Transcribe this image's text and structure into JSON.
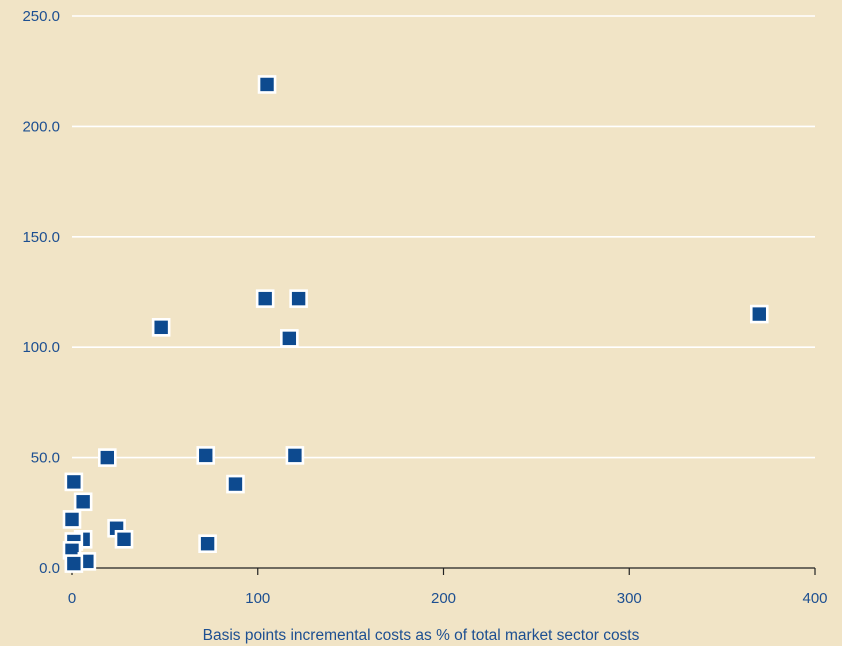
{
  "chart_data": {
    "type": "scatter",
    "title": "",
    "xlabel": "Basis points incremental costs as % of total market sector costs",
    "ylabel": "",
    "xlim": [
      0,
      400
    ],
    "ylim": [
      0,
      250
    ],
    "x_ticks": [
      "0",
      "100",
      "200",
      "300",
      "400"
    ],
    "y_ticks": [
      "0.0",
      "50.0",
      "100.0",
      "150.0",
      "200.0",
      "250.0"
    ],
    "grid": "horizontal",
    "colors": {
      "background": "#f1e4c6",
      "marker": "#0d4a8f",
      "marker_edge": "#ffffff",
      "grid": "#ffffff",
      "text": "#1d4f91"
    },
    "points": [
      {
        "x": 105,
        "y": 219
      },
      {
        "x": 104,
        "y": 122
      },
      {
        "x": 122,
        "y": 122
      },
      {
        "x": 370,
        "y": 115
      },
      {
        "x": 48,
        "y": 109
      },
      {
        "x": 117,
        "y": 104
      },
      {
        "x": 19,
        "y": 50
      },
      {
        "x": 72,
        "y": 51
      },
      {
        "x": 120,
        "y": 51
      },
      {
        "x": 88,
        "y": 38
      },
      {
        "x": 1,
        "y": 39
      },
      {
        "x": 6,
        "y": 30
      },
      {
        "x": 0,
        "y": 22
      },
      {
        "x": 24,
        "y": 18
      },
      {
        "x": 28,
        "y": 13
      },
      {
        "x": 6,
        "y": 13
      },
      {
        "x": 73,
        "y": 11
      },
      {
        "x": 1,
        "y": 12
      },
      {
        "x": 0,
        "y": 8
      },
      {
        "x": 8,
        "y": 3
      },
      {
        "x": 1,
        "y": 2
      }
    ]
  }
}
